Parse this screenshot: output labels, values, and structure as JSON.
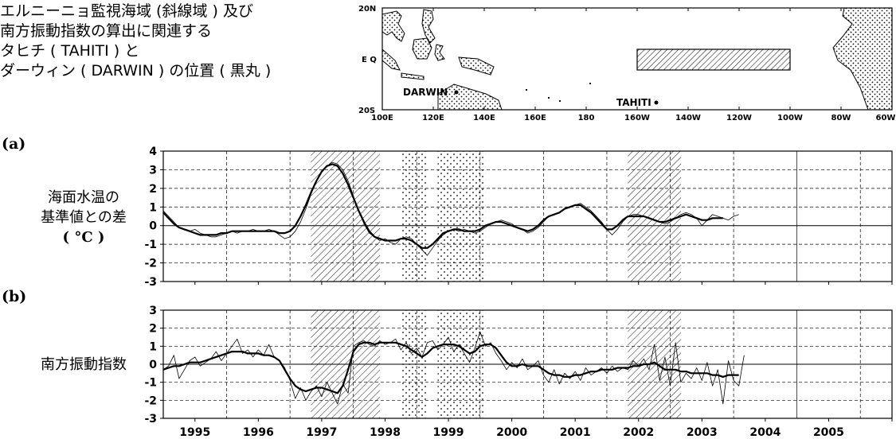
{
  "title_lines": [
    "エルニーニョ監視海域 (斜線域 ) 及び",
    "南方振動指数の算出に関連する",
    "タヒチ ( TAHITI ) と",
    "ダーウィン ( DARWIN ) の位置 ( 黒丸 )"
  ],
  "map": {
    "lat_labels": [
      "20N",
      "E Q",
      "20S"
    ],
    "lon_labels": [
      "100E",
      "120E",
      "140E",
      "160E",
      "180",
      "160W",
      "140W",
      "120W",
      "100W",
      "80W",
      "60W"
    ],
    "stations": [
      "DARWIN",
      "TAHITI"
    ],
    "monitor_region": {
      "lon_range_E": [
        210,
        270
      ],
      "lat_range": [
        -5,
        5
      ]
    }
  },
  "colors": {
    "line": "#000000",
    "grid": "#000000",
    "background": "#ffffff"
  },
  "chart_data": [
    {
      "type": "line",
      "panel_label": "(a)",
      "ylabel": "海面水温の\n基準値との差\n( °C )",
      "ylabel_lines": [
        "海面水温の",
        "基準値との差",
        "( °C )"
      ],
      "xlim": [
        1994.5,
        2006.0
      ],
      "ylim": [
        -3,
        4
      ],
      "yticks": [
        "4",
        "3",
        "2",
        "1",
        "0",
        "-1",
        "-2",
        "-3"
      ],
      "grid": true,
      "shaded_periods": [
        {
          "pattern": "hatched",
          "range": [
            1996.83,
            1997.92
          ]
        },
        {
          "pattern": "dotted",
          "range": [
            1998.25,
            1998.67
          ]
        },
        {
          "pattern": "dotted",
          "range": [
            1998.83,
            1999.58
          ]
        },
        {
          "pattern": "hatched",
          "range": [
            2001.83,
            2002.67
          ]
        }
      ],
      "series": [
        {
          "style": "thin",
          "x_start": 1994.5,
          "step": 0.0833333,
          "values": [
            0.8,
            0.5,
            0.2,
            -0.1,
            -0.2,
            -0.3,
            -0.2,
            -0.4,
            -0.5,
            -0.6,
            -0.6,
            -0.5,
            -0.4,
            -0.3,
            -0.4,
            -0.3,
            -0.3,
            -0.2,
            -0.3,
            -0.3,
            -0.2,
            -0.3,
            -0.5,
            -0.7,
            -0.6,
            -0.3,
            0.2,
            0.9,
            1.7,
            2.4,
            2.9,
            3.2,
            3.4,
            3.3,
            3.0,
            2.4,
            1.6,
            0.8,
            0.1,
            -0.4,
            -0.6,
            -0.8,
            -0.7,
            -0.9,
            -1.0,
            -0.7,
            -0.6,
            -0.7,
            -1.0,
            -1.3,
            -1.6,
            -1.2,
            -0.8,
            -0.5,
            -0.3,
            -0.2,
            -0.3,
            -0.2,
            -0.3,
            -0.4,
            -0.3,
            -0.1,
            0.1,
            0.2,
            0.3,
            0.2,
            0.1,
            -0.1,
            -0.2,
            -0.4,
            -0.3,
            -0.1,
            0.2,
            0.5,
            0.6,
            0.7,
            0.9,
            1.0,
            1.1,
            1.2,
            1.0,
            0.8,
            0.5,
            0.2,
            -0.2,
            -0.5,
            -0.2,
            0.2,
            0.5,
            0.6,
            0.6,
            0.5,
            0.4,
            0.3,
            0.2,
            0.1,
            0.2,
            0.4,
            0.6,
            0.7,
            0.6,
            0.4,
            0.0,
            0.3,
            0.6,
            0.5,
            0.4,
            0.3,
            0.5,
            0.6
          ]
        },
        {
          "style": "thick",
          "x_start": 1994.5,
          "step": 0.0833333,
          "values": [
            0.7,
            0.4,
            0.1,
            -0.1,
            -0.2,
            -0.3,
            -0.4,
            -0.5,
            -0.5,
            -0.5,
            -0.5,
            -0.4,
            -0.4,
            -0.3,
            -0.3,
            -0.3,
            -0.3,
            -0.3,
            -0.3,
            -0.3,
            -0.3,
            -0.3,
            -0.4,
            -0.4,
            -0.3,
            0.0,
            0.5,
            1.1,
            1.8,
            2.4,
            2.9,
            3.2,
            3.3,
            3.2,
            2.8,
            2.2,
            1.5,
            0.8,
            0.2,
            -0.3,
            -0.6,
            -0.7,
            -0.8,
            -0.8,
            -0.8,
            -0.7,
            -0.7,
            -0.8,
            -1.0,
            -1.2,
            -1.2,
            -1.0,
            -0.7,
            -0.4,
            -0.3,
            -0.2,
            -0.2,
            -0.3,
            -0.3,
            -0.3,
            -0.2,
            0.0,
            0.1,
            0.2,
            0.2,
            0.1,
            0.0,
            -0.1,
            -0.2,
            -0.3,
            -0.2,
            0.0,
            0.3,
            0.5,
            0.6,
            0.7,
            0.9,
            1.0,
            1.1,
            1.1,
            0.9,
            0.7,
            0.4,
            0.1,
            -0.2,
            -0.2,
            0.0,
            0.3,
            0.5,
            0.5,
            0.5,
            0.5,
            0.4,
            0.3,
            0.2,
            0.2,
            0.3,
            0.4,
            0.5,
            0.6,
            0.5,
            0.4,
            0.3,
            0.3,
            0.4,
            0.4,
            0.4
          ]
        }
      ]
    },
    {
      "type": "line",
      "panel_label": "(b)",
      "ylabel": "南方振動指数",
      "ylabel_lines": [
        "南方振動指数"
      ],
      "xlim": [
        1994.5,
        2006.0
      ],
      "ylim": [
        -3,
        3
      ],
      "yticks": [
        "3",
        "2",
        "1",
        "0",
        "-1",
        "-2",
        "-3"
      ],
      "xticks": [
        "1995",
        "1996",
        "1997",
        "1998",
        "1999",
        "2000",
        "2001",
        "2002",
        "2003",
        "2004",
        "2005"
      ],
      "grid": true,
      "shaded_periods": [
        {
          "pattern": "hatched",
          "range": [
            1996.83,
            1997.92
          ]
        },
        {
          "pattern": "dotted",
          "range": [
            1998.25,
            1998.67
          ]
        },
        {
          "pattern": "dotted",
          "range": [
            1998.83,
            1999.58
          ]
        },
        {
          "pattern": "hatched",
          "range": [
            2001.83,
            2002.67
          ]
        }
      ],
      "series": [
        {
          "style": "thin",
          "x_start": 1994.5,
          "step": 0.0833333,
          "values": [
            -0.3,
            -0.1,
            0.5,
            -0.8,
            -0.3,
            0.2,
            0.4,
            -0.1,
            0.1,
            0.3,
            0.7,
            0.2,
            0.6,
            1.0,
            1.4,
            0.6,
            0.8,
            0.4,
            0.8,
            0.5,
            1.1,
            0.4,
            0.2,
            -0.2,
            -0.9,
            -1.9,
            -1.3,
            -2.0,
            -1.5,
            -1.2,
            -1.8,
            -1.0,
            -1.6,
            -2.2,
            -1.1,
            -1.6,
            1.0,
            1.2,
            1.3,
            1.1,
            1.0,
            1.3,
            1.1,
            1.2,
            1.4,
            0.8,
            1.2,
            0.6,
            0.9,
            0.4,
            1.2,
            1.3,
            0.8,
            1.1,
            1.5,
            0.7,
            1.1,
            0.6,
            0.1,
            0.9,
            1.8,
            1.0,
            1.2,
            0.6,
            0.2,
            -0.3,
            0.1,
            -0.2,
            0.3,
            -0.3,
            -0.1,
            0.2,
            -0.6,
            -1.0,
            -0.3,
            -1.1,
            -0.5,
            -0.8,
            -0.4,
            -0.9,
            -0.2,
            -0.6,
            -0.4,
            -0.2,
            -0.5,
            -0.1,
            -0.4,
            -0.2,
            -0.3,
            0.2,
            -0.1,
            0.3,
            -0.3,
            1.1,
            -0.9,
            0.4,
            -1.2,
            1.2,
            -1.0,
            -0.5,
            -0.8,
            -0.2,
            -0.9,
            0.1,
            -1.2,
            -0.3,
            -2.2,
            0.2,
            -0.9,
            -1.2,
            0.5
          ]
        },
        {
          "style": "thick",
          "x_start": 1994.5,
          "step": 0.0833333,
          "values": [
            -0.3,
            -0.2,
            -0.1,
            -0.1,
            0.0,
            0.1,
            0.1,
            0.1,
            0.2,
            0.3,
            0.4,
            0.5,
            0.6,
            0.7,
            0.7,
            0.7,
            0.6,
            0.6,
            0.6,
            0.5,
            0.5,
            0.4,
            0.2,
            -0.3,
            -0.8,
            -1.2,
            -1.4,
            -1.5,
            -1.4,
            -1.3,
            -1.3,
            -1.4,
            -1.5,
            -1.6,
            -1.2,
            -0.3,
            0.7,
            1.1,
            1.2,
            1.2,
            1.1,
            1.2,
            1.2,
            1.2,
            1.2,
            1.1,
            1.0,
            0.8,
            0.6,
            0.4,
            0.6,
            0.9,
            1.0,
            1.1,
            1.1,
            1.1,
            1.0,
            0.8,
            0.6,
            0.7,
            1.0,
            1.1,
            1.1,
            0.9,
            0.5,
            0.1,
            -0.1,
            -0.1,
            0.0,
            -0.1,
            -0.1,
            -0.1,
            -0.3,
            -0.5,
            -0.6,
            -0.6,
            -0.7,
            -0.7,
            -0.6,
            -0.6,
            -0.5,
            -0.4,
            -0.4,
            -0.3,
            -0.3,
            -0.3,
            -0.2,
            -0.2,
            -0.2,
            -0.1,
            -0.1,
            0.0,
            0.0,
            0.1,
            -0.1,
            -0.3,
            -0.3,
            -0.3,
            -0.4,
            -0.4,
            -0.5,
            -0.5,
            -0.5,
            -0.5,
            -0.6,
            -0.6,
            -0.7,
            -0.6,
            -0.6,
            -0.6
          ]
        }
      ]
    }
  ]
}
